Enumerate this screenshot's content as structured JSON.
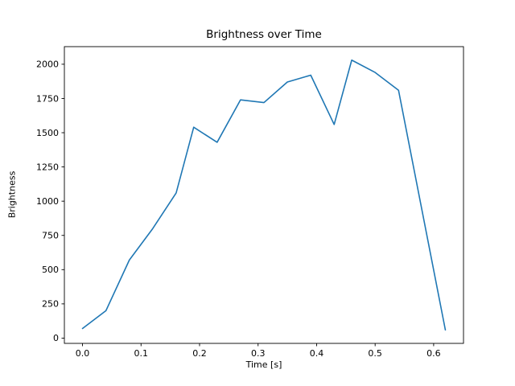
{
  "chart_data": {
    "type": "line",
    "title": "Brightness over Time",
    "xlabel": "Time [s]",
    "ylabel": "Brightness",
    "x": [
      0.0,
      0.04,
      0.08,
      0.12,
      0.16,
      0.19,
      0.23,
      0.27,
      0.31,
      0.35,
      0.39,
      0.43,
      0.46,
      0.5,
      0.54,
      0.62
    ],
    "y": [
      70,
      200,
      570,
      800,
      1060,
      1540,
      1430,
      1740,
      1720,
      1870,
      1920,
      1560,
      2030,
      1940,
      1810,
      60
    ],
    "xlim": [
      -0.031,
      0.651
    ],
    "ylim": [
      -38.5,
      2128.5
    ],
    "xticks": [
      0.0,
      0.1,
      0.2,
      0.3,
      0.4,
      0.5,
      0.6
    ],
    "xtick_labels": [
      "0.0",
      "0.1",
      "0.2",
      "0.3",
      "0.4",
      "0.5",
      "0.6"
    ],
    "yticks": [
      0,
      250,
      500,
      750,
      1000,
      1250,
      1500,
      1750,
      2000
    ],
    "ytick_labels": [
      "0",
      "250",
      "500",
      "750",
      "1000",
      "1250",
      "1500",
      "1750",
      "2000"
    ],
    "line_color": "#1f77b4",
    "spine_color": "#000000",
    "grid": false,
    "legend_position": "none"
  }
}
